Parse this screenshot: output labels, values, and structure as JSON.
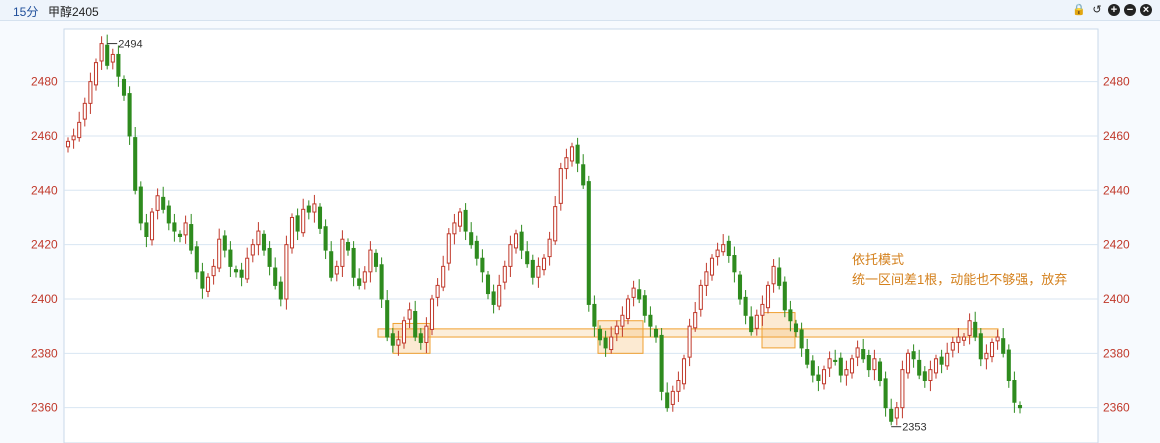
{
  "header": {
    "period": "15分",
    "symbol": "甲醇2405",
    "icons": [
      "lock-icon",
      "undo-icon",
      "zoom-in-icon",
      "zoom-out-icon",
      "close-icon"
    ]
  },
  "annotation": {
    "line1": "依托模式",
    "line2": "统一区间差1根，动能也不够强，放弃"
  },
  "chart_data": {
    "type": "candlestick",
    "y_ticks": [
      2360,
      2380,
      2400,
      2420,
      2440,
      2460,
      2480
    ],
    "ylim": [
      2347,
      2499
    ],
    "max_label": "2494",
    "min_label": "2353",
    "up_color": "#c0392b",
    "down_color": "#2e8b1e",
    "zone_color": "#f0a030",
    "support_band": [
      2386,
      2389
    ],
    "boxes": [
      [
        2380,
        2391
      ],
      [
        2380,
        2392
      ],
      [
        2382,
        2395
      ]
    ],
    "closes": [
      2458,
      2460,
      2465,
      2472,
      2480,
      2487,
      2494,
      2486,
      2490,
      2482,
      2475,
      2460,
      2440,
      2428,
      2423,
      2432,
      2438,
      2433,
      2428,
      2425,
      2423,
      2428,
      2418,
      2410,
      2404,
      2408,
      2412,
      2422,
      2418,
      2412,
      2410,
      2408,
      2415,
      2420,
      2425,
      2418,
      2412,
      2405,
      2400,
      2420,
      2430,
      2425,
      2433,
      2432,
      2435,
      2426,
      2418,
      2408,
      2412,
      2422,
      2418,
      2408,
      2405,
      2410,
      2418,
      2412,
      2400,
      2386,
      2383,
      2385,
      2392,
      2396,
      2386,
      2384,
      2390,
      2400,
      2405,
      2412,
      2424,
      2428,
      2432,
      2425,
      2420,
      2415,
      2410,
      2402,
      2398,
      2405,
      2412,
      2420,
      2424,
      2418,
      2413,
      2408,
      2412,
      2415,
      2422,
      2434,
      2448,
      2452,
      2456,
      2450,
      2442,
      2398,
      2390,
      2385,
      2382,
      2386,
      2390,
      2394,
      2400,
      2404,
      2400,
      2394,
      2390,
      2386,
      2366,
      2360,
      2366,
      2370,
      2378,
      2390,
      2395,
      2405,
      2410,
      2415,
      2418,
      2420,
      2416,
      2410,
      2400,
      2394,
      2388,
      2394,
      2398,
      2405,
      2412,
      2405,
      2396,
      2392,
      2388,
      2382,
      2376,
      2372,
      2370,
      2374,
      2378,
      2377,
      2372,
      2374,
      2378,
      2382,
      2378,
      2374,
      2378,
      2370,
      2360,
      2355,
      2360,
      2374,
      2380,
      2378,
      2372,
      2370,
      2374,
      2378,
      2376,
      2380,
      2384,
      2386,
      2386,
      2392,
      2386,
      2378,
      2380,
      2384,
      2386,
      2380,
      2370,
      2362,
      2360
    ]
  }
}
